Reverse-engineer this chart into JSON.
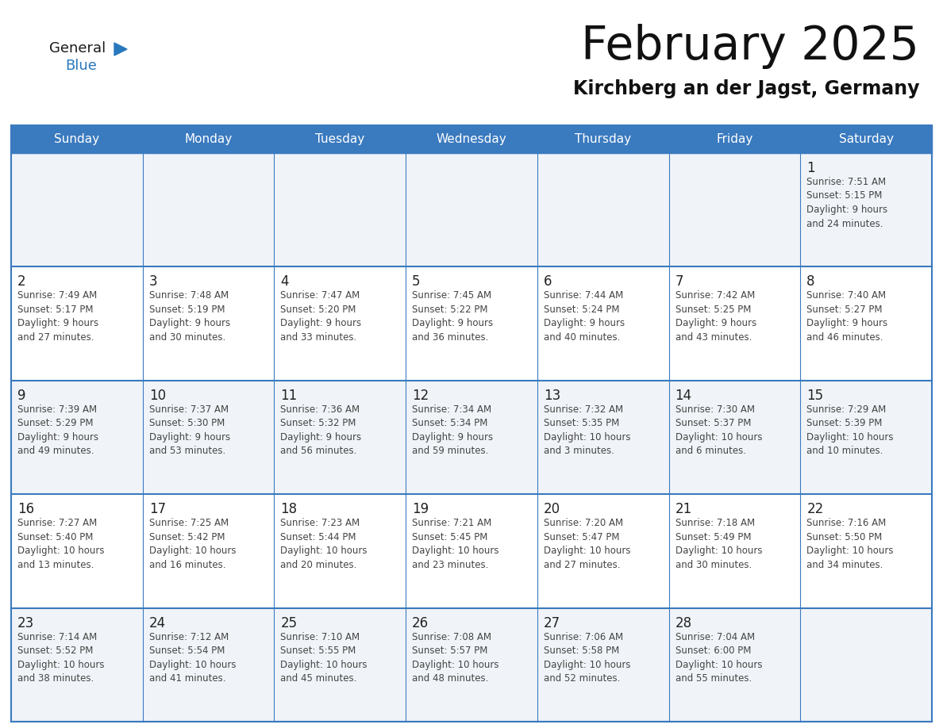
{
  "title": "February 2025",
  "subtitle": "Kirchberg an der Jagst, Germany",
  "days_of_week": [
    "Sunday",
    "Monday",
    "Tuesday",
    "Wednesday",
    "Thursday",
    "Friday",
    "Saturday"
  ],
  "header_bg": "#3a7abf",
  "header_text": "#ffffff",
  "row_bg_odd": "#f0f4f8",
  "row_bg_even": "#ffffff",
  "separator_color": "#3a7abf",
  "text_color": "#444444",
  "day_num_color": "#222222",
  "logo_general_color": "#1a1a1a",
  "logo_blue_color": "#2878be",
  "title_color": "#111111",
  "subtitle_color": "#111111",
  "calendar_data": [
    [
      {
        "day": null,
        "info": null
      },
      {
        "day": null,
        "info": null
      },
      {
        "day": null,
        "info": null
      },
      {
        "day": null,
        "info": null
      },
      {
        "day": null,
        "info": null
      },
      {
        "day": null,
        "info": null
      },
      {
        "day": 1,
        "info": "Sunrise: 7:51 AM\nSunset: 5:15 PM\nDaylight: 9 hours\nand 24 minutes."
      }
    ],
    [
      {
        "day": 2,
        "info": "Sunrise: 7:49 AM\nSunset: 5:17 PM\nDaylight: 9 hours\nand 27 minutes."
      },
      {
        "day": 3,
        "info": "Sunrise: 7:48 AM\nSunset: 5:19 PM\nDaylight: 9 hours\nand 30 minutes."
      },
      {
        "day": 4,
        "info": "Sunrise: 7:47 AM\nSunset: 5:20 PM\nDaylight: 9 hours\nand 33 minutes."
      },
      {
        "day": 5,
        "info": "Sunrise: 7:45 AM\nSunset: 5:22 PM\nDaylight: 9 hours\nand 36 minutes."
      },
      {
        "day": 6,
        "info": "Sunrise: 7:44 AM\nSunset: 5:24 PM\nDaylight: 9 hours\nand 40 minutes."
      },
      {
        "day": 7,
        "info": "Sunrise: 7:42 AM\nSunset: 5:25 PM\nDaylight: 9 hours\nand 43 minutes."
      },
      {
        "day": 8,
        "info": "Sunrise: 7:40 AM\nSunset: 5:27 PM\nDaylight: 9 hours\nand 46 minutes."
      }
    ],
    [
      {
        "day": 9,
        "info": "Sunrise: 7:39 AM\nSunset: 5:29 PM\nDaylight: 9 hours\nand 49 minutes."
      },
      {
        "day": 10,
        "info": "Sunrise: 7:37 AM\nSunset: 5:30 PM\nDaylight: 9 hours\nand 53 minutes."
      },
      {
        "day": 11,
        "info": "Sunrise: 7:36 AM\nSunset: 5:32 PM\nDaylight: 9 hours\nand 56 minutes."
      },
      {
        "day": 12,
        "info": "Sunrise: 7:34 AM\nSunset: 5:34 PM\nDaylight: 9 hours\nand 59 minutes."
      },
      {
        "day": 13,
        "info": "Sunrise: 7:32 AM\nSunset: 5:35 PM\nDaylight: 10 hours\nand 3 minutes."
      },
      {
        "day": 14,
        "info": "Sunrise: 7:30 AM\nSunset: 5:37 PM\nDaylight: 10 hours\nand 6 minutes."
      },
      {
        "day": 15,
        "info": "Sunrise: 7:29 AM\nSunset: 5:39 PM\nDaylight: 10 hours\nand 10 minutes."
      }
    ],
    [
      {
        "day": 16,
        "info": "Sunrise: 7:27 AM\nSunset: 5:40 PM\nDaylight: 10 hours\nand 13 minutes."
      },
      {
        "day": 17,
        "info": "Sunrise: 7:25 AM\nSunset: 5:42 PM\nDaylight: 10 hours\nand 16 minutes."
      },
      {
        "day": 18,
        "info": "Sunrise: 7:23 AM\nSunset: 5:44 PM\nDaylight: 10 hours\nand 20 minutes."
      },
      {
        "day": 19,
        "info": "Sunrise: 7:21 AM\nSunset: 5:45 PM\nDaylight: 10 hours\nand 23 minutes."
      },
      {
        "day": 20,
        "info": "Sunrise: 7:20 AM\nSunset: 5:47 PM\nDaylight: 10 hours\nand 27 minutes."
      },
      {
        "day": 21,
        "info": "Sunrise: 7:18 AM\nSunset: 5:49 PM\nDaylight: 10 hours\nand 30 minutes."
      },
      {
        "day": 22,
        "info": "Sunrise: 7:16 AM\nSunset: 5:50 PM\nDaylight: 10 hours\nand 34 minutes."
      }
    ],
    [
      {
        "day": 23,
        "info": "Sunrise: 7:14 AM\nSunset: 5:52 PM\nDaylight: 10 hours\nand 38 minutes."
      },
      {
        "day": 24,
        "info": "Sunrise: 7:12 AM\nSunset: 5:54 PM\nDaylight: 10 hours\nand 41 minutes."
      },
      {
        "day": 25,
        "info": "Sunrise: 7:10 AM\nSunset: 5:55 PM\nDaylight: 10 hours\nand 45 minutes."
      },
      {
        "day": 26,
        "info": "Sunrise: 7:08 AM\nSunset: 5:57 PM\nDaylight: 10 hours\nand 48 minutes."
      },
      {
        "day": 27,
        "info": "Sunrise: 7:06 AM\nSunset: 5:58 PM\nDaylight: 10 hours\nand 52 minutes."
      },
      {
        "day": 28,
        "info": "Sunrise: 7:04 AM\nSunset: 6:00 PM\nDaylight: 10 hours\nand 55 minutes."
      },
      {
        "day": null,
        "info": null
      }
    ]
  ],
  "figsize": [
    11.88,
    9.18
  ],
  "dpi": 100
}
